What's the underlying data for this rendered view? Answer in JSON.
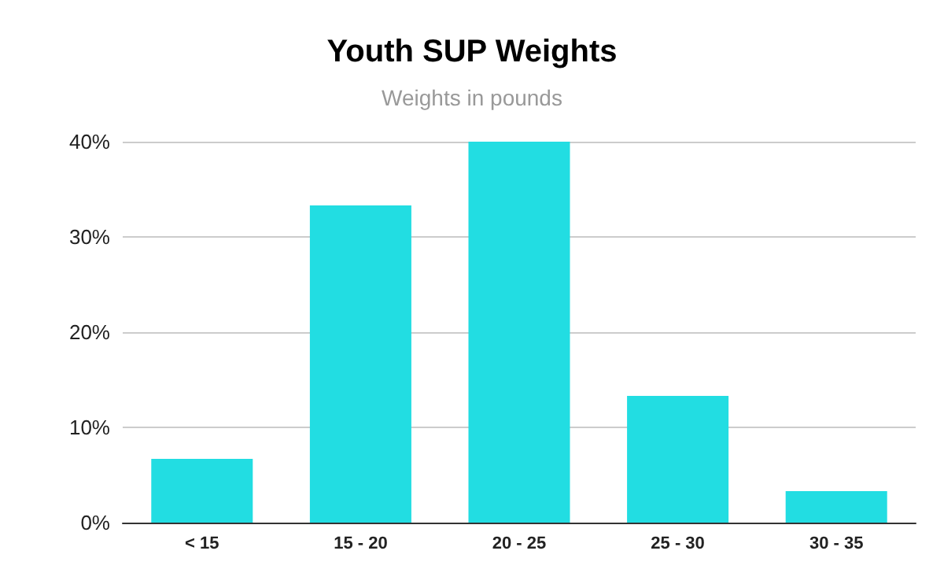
{
  "chart_data": {
    "type": "bar",
    "title": "Youth SUP Weights",
    "subtitle": "Weights in pounds",
    "categories": [
      "< 15",
      "15 - 20",
      "20 - 25",
      "25 - 30",
      "30 - 35"
    ],
    "values": [
      6.7,
      33.3,
      40,
      13.3,
      3.3
    ],
    "color": "#22dde2",
    "ylim": [
      0,
      40
    ],
    "yticks": [
      {
        "value": 0,
        "label": "0%"
      },
      {
        "value": 10,
        "label": "10%"
      },
      {
        "value": 20,
        "label": "20%"
      },
      {
        "value": 30,
        "label": "30%"
      },
      {
        "value": 40,
        "label": "40%"
      }
    ],
    "grid": "y"
  }
}
